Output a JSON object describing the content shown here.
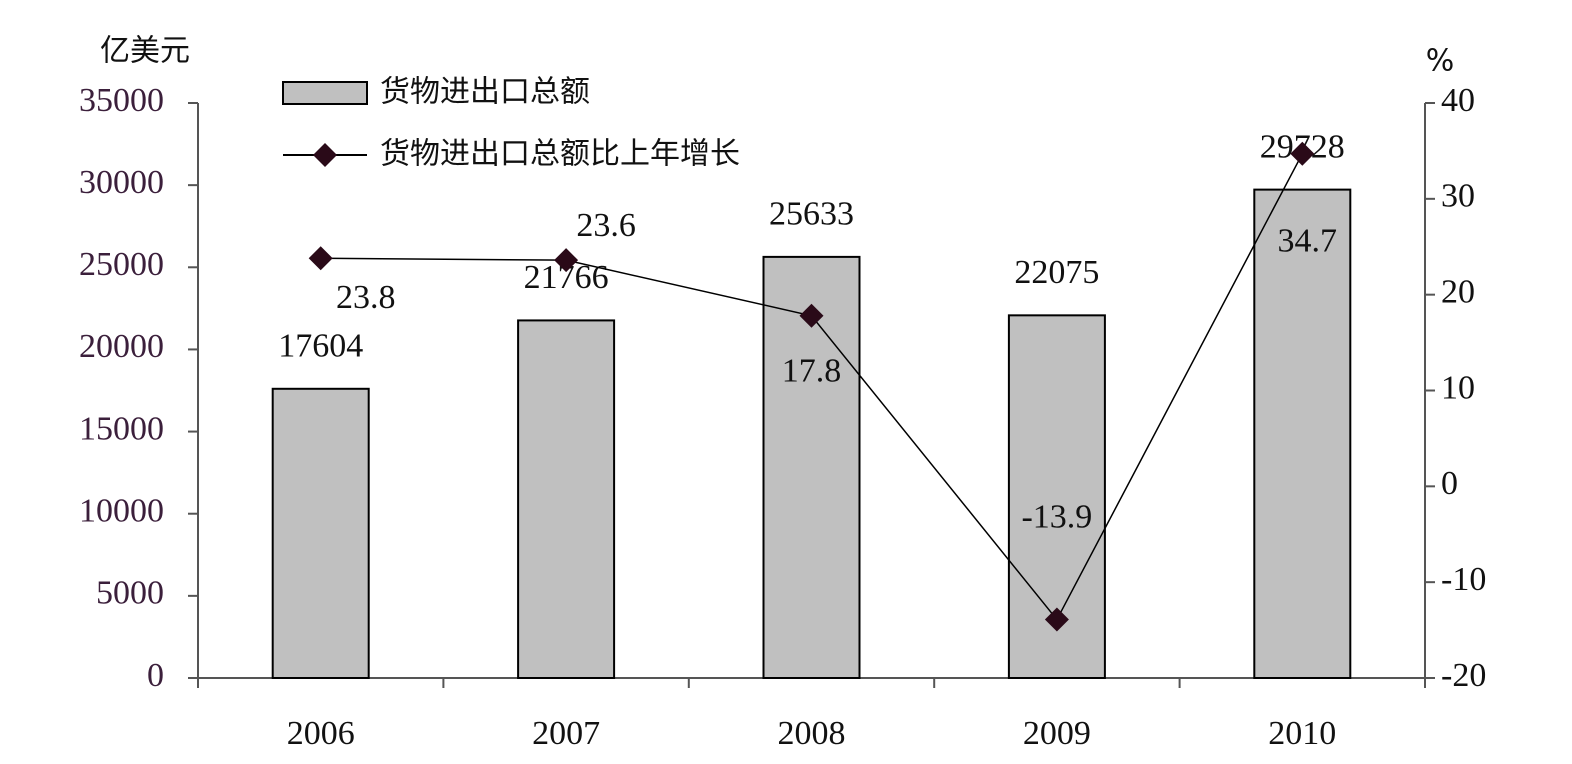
{
  "chart_data": {
    "type": "bar",
    "y_label": "亿美元",
    "y2_label": "%",
    "categories": [
      "2006",
      "2007",
      "2008",
      "2009",
      "2010"
    ],
    "series": [
      {
        "name": "货物进出口总额",
        "type": "bar",
        "color": "#c0c0c0",
        "values": [
          17604,
          21766,
          25633,
          22075,
          29728
        ]
      },
      {
        "name": "货物进出口总额比上年增长",
        "type": "line",
        "axis": "y2",
        "color": "#000000",
        "marker_color": "#2a0a18",
        "values": [
          23.8,
          23.6,
          17.8,
          -13.9,
          34.7
        ]
      }
    ],
    "ylim": [
      0,
      35000
    ],
    "yticks": [
      0,
      5000,
      10000,
      15000,
      20000,
      25000,
      30000,
      35000
    ],
    "y2lim": [
      -20,
      40
    ],
    "y2ticks": [
      -20,
      -10,
      0,
      10,
      20,
      30,
      40
    ],
    "grid": false,
    "legend": "top-left"
  }
}
